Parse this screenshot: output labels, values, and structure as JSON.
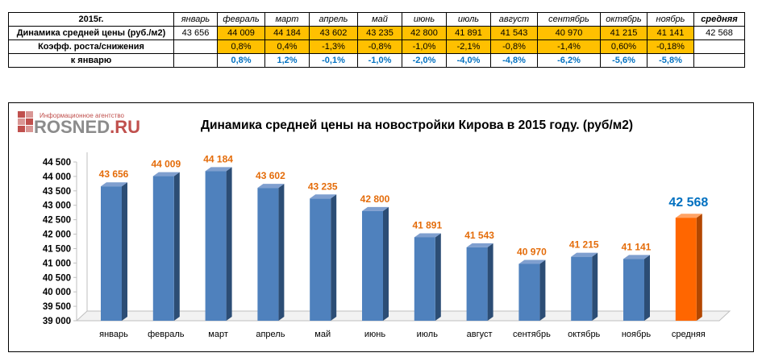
{
  "table": {
    "year_label": "2015г.",
    "months": [
      "январь",
      "февраль",
      "март",
      "апрель",
      "май",
      "июнь",
      "июль",
      "август",
      "сентябрь",
      "октябрь",
      "ноябрь"
    ],
    "avg_label": "средняя",
    "row1_label": "Динамика средней цены (руб./м2)",
    "row1": [
      "43 656",
      "44 009",
      "44 184",
      "43 602",
      "43 235",
      "42 800",
      "41 891",
      "41 543",
      "40 970",
      "41 215",
      "41 141"
    ],
    "row1_avg": "42 568",
    "row2_label": "Коэфф. роста/снижения",
    "row2": [
      "",
      "0,8%",
      "0,4%",
      "-1,3%",
      "-0,8%",
      "-1,0%",
      "-2,1%",
      "-0,8%",
      "-1,4%",
      "0,60%",
      "-0,18%"
    ],
    "row3_label": "к январю",
    "row3": [
      "",
      "0,8%",
      "1,2%",
      "-0,1%",
      "-1,0%",
      "-2,0%",
      "-4,0%",
      "-4,8%",
      "-6,2%",
      "-5,6%",
      "-5,8%"
    ]
  },
  "logo": {
    "subtitle": "Информационное агентство",
    "name": "ROSNED",
    "tld": ".RU"
  },
  "colors": {
    "bar": "#4f81bd",
    "bar_highlight": "#ff6600",
    "label_orange": "#e46c0a",
    "label_blue": "#0070c0",
    "cell_orange": "#ffc000"
  },
  "chart_data": {
    "type": "bar",
    "title": "Динамика средней цены на новостройки Кирова в 2015 году. (руб/м2)",
    "categories": [
      "январь",
      "февраль",
      "март",
      "апрель",
      "май",
      "июнь",
      "июль",
      "август",
      "сентябрь",
      "октябрь",
      "ноябрь",
      "средняя"
    ],
    "values": [
      43656,
      44009,
      44184,
      43602,
      43235,
      42800,
      41891,
      41543,
      40970,
      41215,
      41141,
      42568
    ],
    "value_labels": [
      "43 656",
      "44 009",
      "44 184",
      "43 602",
      "43 235",
      "42 800",
      "41 891",
      "41 543",
      "40 970",
      "41 215",
      "41 141",
      "42 568"
    ],
    "highlight_index": 11,
    "ylim": [
      39000,
      44500
    ],
    "yticks": [
      39000,
      39500,
      40000,
      40500,
      41000,
      41500,
      42000,
      42500,
      43000,
      43500,
      44000,
      44500
    ],
    "ytick_labels": [
      "39 000",
      "39 500",
      "40 000",
      "40 500",
      "41 000",
      "41 500",
      "42 000",
      "42 500",
      "43 000",
      "43 500",
      "44 000",
      "44 500"
    ],
    "xlabel": "",
    "ylabel": "",
    "grid": false,
    "legend": "none"
  }
}
